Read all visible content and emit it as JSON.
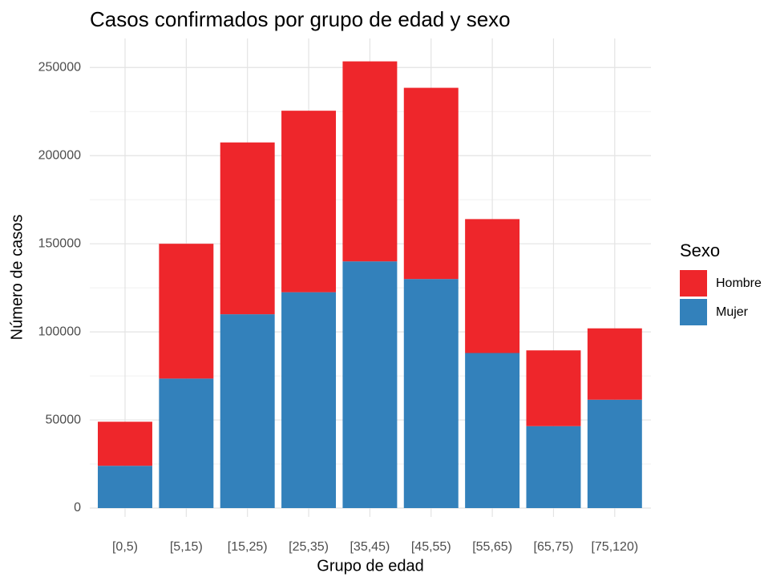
{
  "chart_data": {
    "type": "stacked_bar",
    "title": "Casos confirmados por grupo de edad y sexo",
    "x_label": "Grupo de edad",
    "y_label": "Número de casos",
    "legend_title": "Sexo",
    "legend_position": "right",
    "categories": [
      "[0,5)",
      "[5,15)",
      "[15,25)",
      "[25,35)",
      "[35,45)",
      "[45,55)",
      "[55,65)",
      "[65,75)",
      "[75,120)"
    ],
    "series": [
      {
        "name": "Hombre",
        "color": "#ee262b",
        "values": [
          25000,
          76500,
          97500,
          103000,
          113500,
          108500,
          76000,
          43000,
          40500
        ]
      },
      {
        "name": "Mujer",
        "color": "#3381bb",
        "values": [
          24000,
          73500,
          110000,
          122500,
          140000,
          130000,
          88000,
          46500,
          61500
        ]
      }
    ],
    "ylim": [
      -5000,
      266500
    ],
    "yticks": [
      0,
      50000,
      100000,
      150000,
      200000,
      250000
    ],
    "grid": true
  }
}
